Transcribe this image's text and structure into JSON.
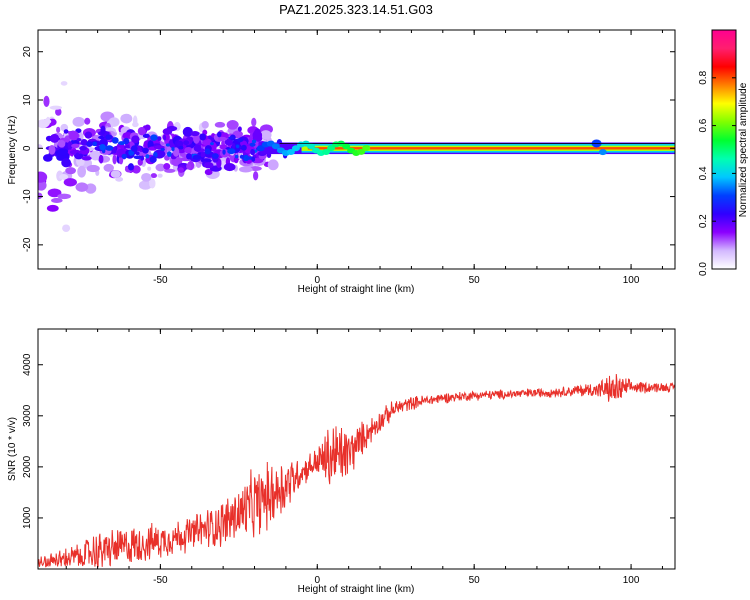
{
  "figure_title": "PAZ1.2025.323.14.51.G03",
  "chart_data": [
    {
      "type": "heatmap",
      "title": "PAZ1.2025.323.14.51.G03",
      "xlabel": "Height of straight line (km)",
      "ylabel": "Frequency (Hz)",
      "xlim": [
        -89,
        114
      ],
      "ylim": [
        -25,
        24.5
      ],
      "xticks": [
        -50,
        0,
        50,
        100
      ],
      "yticks": [
        -20,
        -10,
        0,
        10,
        20
      ],
      "x_tick_labels": [
        "-50",
        "0",
        "50",
        "100"
      ],
      "y_tick_labels": [
        "-20",
        "-10",
        "0",
        "10",
        "20"
      ],
      "colorbar": {
        "label": "Normalized spectral amplitude",
        "range": [
          0,
          1
        ],
        "ticks": [
          0.0,
          0.2,
          0.4,
          0.6,
          0.8
        ],
        "tick_labels": [
          "0.0",
          "0.2",
          "0.4",
          "0.6",
          "0.8"
        ],
        "colormap": [
          "#ffffff",
          "#d3b8ff",
          "#8b00ff",
          "#3000ff",
          "#0040ff",
          "#00c8ff",
          "#00ffb0",
          "#00ff30",
          "#80ff00",
          "#ffff00",
          "#ff8000",
          "#ff0000",
          "#ff1f6f",
          "#ff0090"
        ]
      },
      "ridge": {
        "frequency_hz": 0,
        "x_start": -15,
        "x_end": 114,
        "amplitude_peak": 0.8
      },
      "description_series": [
        {
          "name": "scatter_energy",
          "x_range": [
            -89,
            -20
          ],
          "freq_spread_hz": 8
        }
      ]
    },
    {
      "type": "line",
      "xlabel": "Height of straight line (km)",
      "ylabel": "SNR (10 * v/v)",
      "xlim": [
        -89,
        114
      ],
      "ylim": [
        0,
        4700
      ],
      "xticks": [
        -50,
        0,
        50,
        100
      ],
      "yticks": [
        1000,
        2000,
        3000,
        4000
      ],
      "x_tick_labels": [
        "-50",
        "0",
        "50",
        "100"
      ],
      "y_tick_labels": [
        "1000",
        "2000",
        "3000",
        "4000"
      ],
      "color": "#e8302a",
      "series": [
        {
          "name": "SNR",
          "trend_x": [
            -89,
            -80,
            -70,
            -60,
            -50,
            -40,
            -30,
            -20,
            -10,
            -5,
            0,
            5,
            10,
            15,
            20,
            25,
            30,
            40,
            50,
            60,
            70,
            80,
            90,
            95,
            100,
            114
          ],
          "trend_y": [
            100,
            200,
            350,
            450,
            550,
            700,
            900,
            1250,
            1650,
            1900,
            2100,
            2200,
            2250,
            2600,
            2900,
            3150,
            3250,
            3350,
            3400,
            3420,
            3450,
            3480,
            3520,
            3500,
            3560,
            3560
          ],
          "noise_amp": [
            150,
            250,
            450,
            450,
            400,
            400,
            550,
            800,
            700,
            300,
            350,
            900,
            600,
            350,
            250,
            200,
            150,
            120,
            110,
            110,
            110,
            120,
            200,
            400,
            150,
            100
          ]
        }
      ]
    }
  ]
}
